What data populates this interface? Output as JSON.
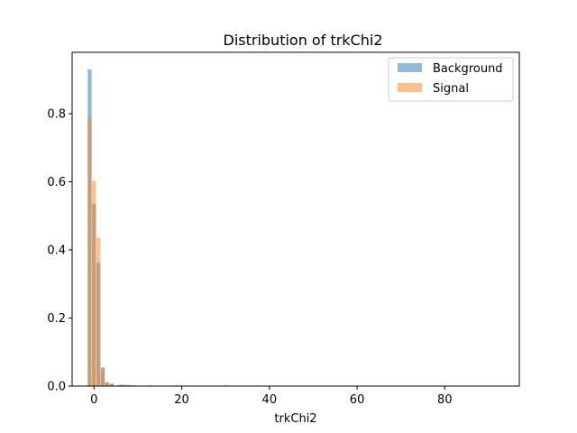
{
  "chart_data": {
    "type": "bar",
    "title": "Distribution of trkChi2",
    "xlabel": "trkChi2",
    "ylabel": "",
    "xlim": [
      -5,
      97
    ],
    "ylim": [
      0,
      0.98
    ],
    "xticks": [
      0,
      20,
      40,
      60,
      80
    ],
    "yticks": [
      0.0,
      0.2,
      0.4,
      0.6,
      0.8
    ],
    "bin_width": 0.9,
    "legend_position": "upper right",
    "grid": false,
    "series": [
      {
        "name": "Background",
        "color": "#1f77b4",
        "alpha": 0.5,
        "bins": [
          {
            "x": -1,
            "y": 0.93
          },
          {
            "x": 0,
            "y": 0.535
          },
          {
            "x": 1,
            "y": 0.362
          },
          {
            "x": 2,
            "y": 0.055
          },
          {
            "x": 3,
            "y": 0.012
          },
          {
            "x": 4,
            "y": 0.006
          },
          {
            "x": 6,
            "y": 0.004
          },
          {
            "x": 7,
            "y": 0.004
          },
          {
            "x": 8,
            "y": 0.003
          },
          {
            "x": 9,
            "y": 0.002
          },
          {
            "x": 13,
            "y": 0.002
          },
          {
            "x": 20,
            "y": 0.001
          },
          {
            "x": 30,
            "y": 0.002
          },
          {
            "x": 50,
            "y": 0.001
          }
        ]
      },
      {
        "name": "Signal",
        "color": "#ff7f0e",
        "alpha": 0.5,
        "bins": [
          {
            "x": -1,
            "y": 0.79
          },
          {
            "x": 0,
            "y": 0.602
          },
          {
            "x": 1,
            "y": 0.436
          },
          {
            "x": 2,
            "y": 0.05
          },
          {
            "x": 3,
            "y": 0.009
          },
          {
            "x": 4,
            "y": 0.008
          },
          {
            "x": 6,
            "y": 0.003
          },
          {
            "x": 8,
            "y": 0.002
          },
          {
            "x": 19,
            "y": 0.003
          },
          {
            "x": 30,
            "y": 0.002
          }
        ]
      }
    ]
  }
}
